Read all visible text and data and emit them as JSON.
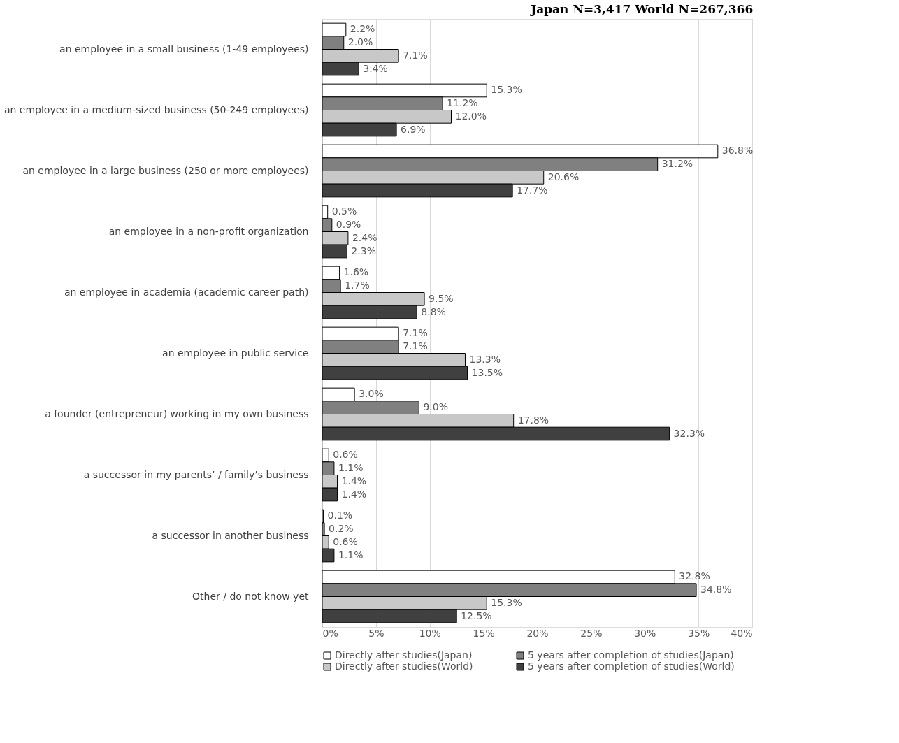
{
  "chart_data": {
    "type": "bar",
    "orientation": "horizontal",
    "title": "Japan N=3,417      World N=267,366",
    "categories": [
      "an employee in a small business (1-49 employees)",
      "an employee in a medium-sized business (50-249 employees)",
      "an employee in a large business (250 or more employees)",
      "an employee in a non-profit organization",
      "an employee in academia (academic career path)",
      "an employee in public service",
      "a founder (entrepreneur) working in my own business",
      "a successor in my parents’ / family’s business",
      "a successor in another business",
      "Other / do not know yet"
    ],
    "series": [
      {
        "name": "Directly after studies(Japan)",
        "color": "#ffffff",
        "values": [
          2.2,
          15.3,
          36.8,
          0.5,
          1.6,
          7.1,
          3.0,
          0.6,
          0.1,
          32.8
        ],
        "value_labels": [
          "2.2%",
          "15.3%",
          "36.8%",
          "0.5%",
          "1.6%",
          "7.1%",
          "3.0%",
          "0.6%",
          "0.1%",
          "32.8%"
        ]
      },
      {
        "name": "5 years after completion of studies(Japan)",
        "color": "#808080",
        "values": [
          2.0,
          11.2,
          31.2,
          0.9,
          1.7,
          7.1,
          9.0,
          1.1,
          0.2,
          34.8
        ],
        "value_labels": [
          "2.0%",
          "11.2%",
          "31.2%",
          "0.9%",
          "1.7%",
          "7.1%",
          "9.0%",
          "1.1%",
          "0.2%",
          "34.8%"
        ]
      },
      {
        "name": "Directly after studies(World)",
        "color": "#c8c8c8",
        "values": [
          7.1,
          12.0,
          20.6,
          2.4,
          9.5,
          13.3,
          17.8,
          1.4,
          0.6,
          15.3
        ],
        "value_labels": [
          "7.1%",
          "12.0%",
          "20.6%",
          "2.4%",
          "9.5%",
          "13.3%",
          "17.8%",
          "1.4%",
          "0.6%",
          "15.3%"
        ]
      },
      {
        "name": "5 years after completion of studies(World)",
        "color": "#404040",
        "values": [
          3.4,
          6.9,
          17.7,
          2.3,
          8.8,
          13.5,
          32.3,
          1.4,
          1.1,
          12.5
        ],
        "value_labels": [
          "3.4%",
          "6.9%",
          "17.7%",
          "2.3%",
          "8.8%",
          "13.5%",
          "32.3%",
          "1.4%",
          "1.1%",
          "12.5%"
        ]
      }
    ],
    "xlim": [
      0,
      40
    ],
    "xticks": [
      {
        "value": 0,
        "label": "0%"
      },
      {
        "value": 5,
        "label": "5%"
      },
      {
        "value": 10,
        "label": "10%"
      },
      {
        "value": 15,
        "label": "15%"
      },
      {
        "value": 20,
        "label": "20%"
      },
      {
        "value": 25,
        "label": "25%"
      },
      {
        "value": 30,
        "label": "30%"
      },
      {
        "value": 35,
        "label": "35%"
      },
      {
        "value": 40,
        "label": "40%"
      }
    ],
    "grid": "x",
    "legend": "bottom"
  }
}
